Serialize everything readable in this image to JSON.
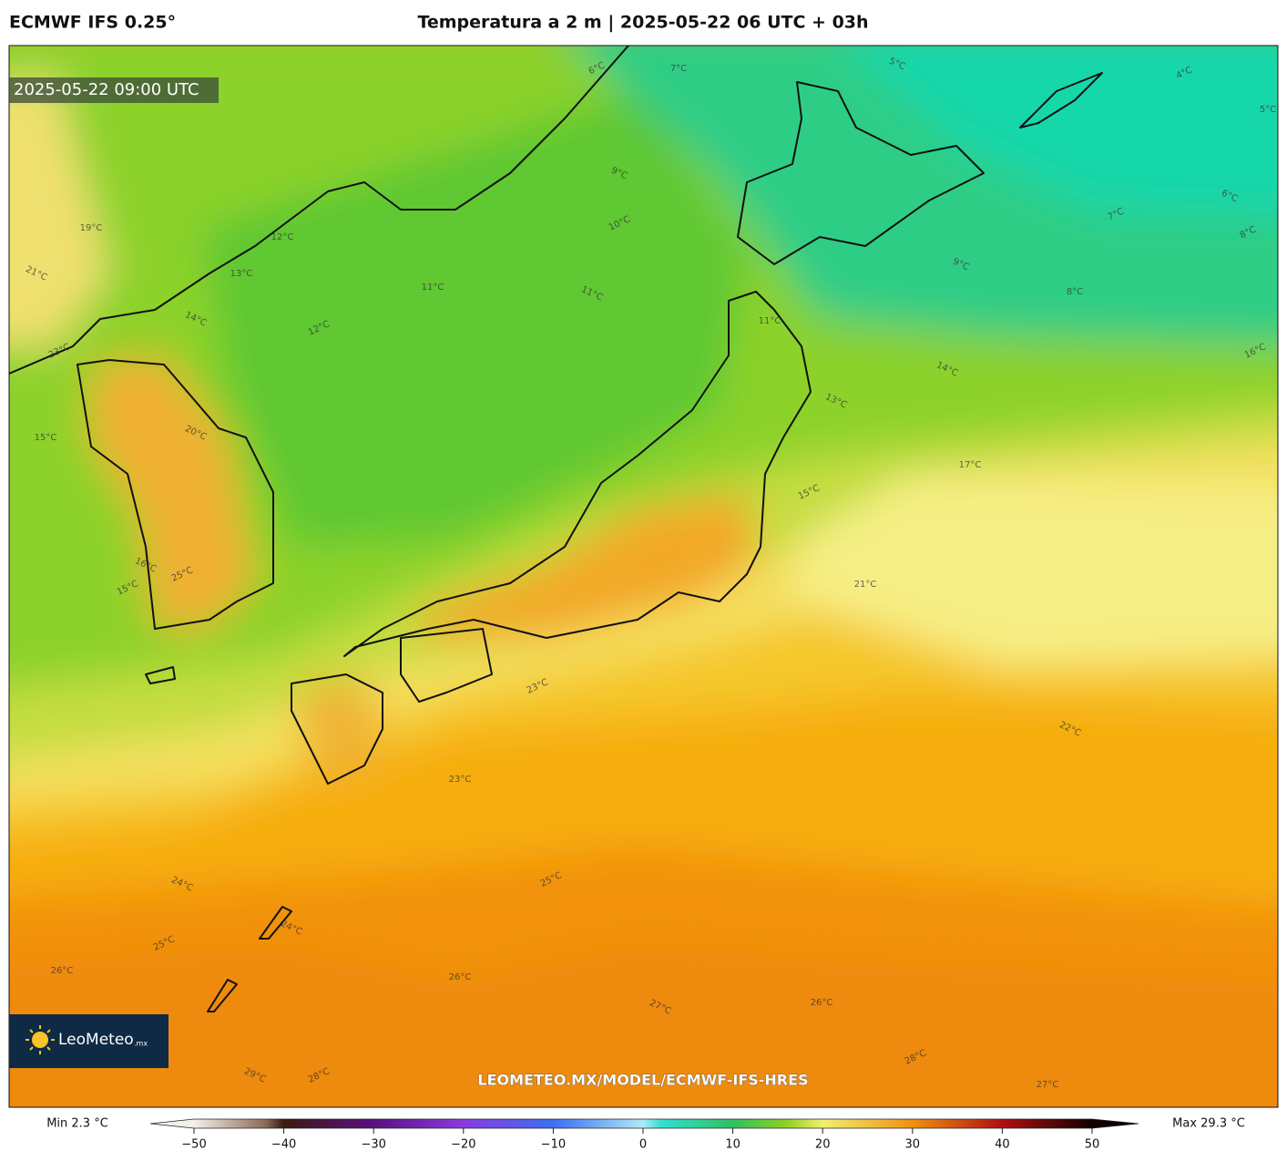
{
  "header": {
    "model": "ECMWF IFS 0.25°",
    "title": "Temperatura a 2 m | 2025-05-22 06 UTC + 03h"
  },
  "timestamp": "2025-05-22 09:00 UTC",
  "logo": {
    "name": "LeoMeteo",
    "suffix": ".mx"
  },
  "watermark": "LEOMETEO.MX/MODEL/ECMWF-IFS-HRES",
  "colorbar": {
    "min_label": "Min 2.3 °C",
    "max_label": "Max 29.3 °C",
    "lim": [
      -50,
      50
    ],
    "ticks": [
      {
        "value": -50,
        "label": "−50"
      },
      {
        "value": -40,
        "label": "−40"
      },
      {
        "value": -30,
        "label": "−30"
      },
      {
        "value": -20,
        "label": "−20"
      },
      {
        "value": -10,
        "label": "−10"
      },
      0,
      10,
      20,
      30,
      40,
      50
    ]
  },
  "contour_labels": [
    "6°C",
    "7°C",
    "5°C",
    "4°C",
    "5°C",
    "9°C",
    "10°C",
    "11°C",
    "11°C",
    "12°C",
    "12°C",
    "6°C",
    "7°C",
    "8°C",
    "9°C",
    "8°C",
    "11°C",
    "14°C",
    "16°C",
    "17°C",
    "13°C",
    "15°C",
    "19°C",
    "21°C",
    "23°C",
    "15°C",
    "16°C",
    "15°C",
    "21°C",
    "22°C",
    "23°C",
    "23°C",
    "24°C",
    "25°C",
    "26°C",
    "24°C",
    "25°C",
    "26°C",
    "27°C",
    "28°C",
    "26°C",
    "29°C",
    "28°C",
    "27°C",
    "20°C",
    "25°C",
    "13°C",
    "14°C"
  ]
}
